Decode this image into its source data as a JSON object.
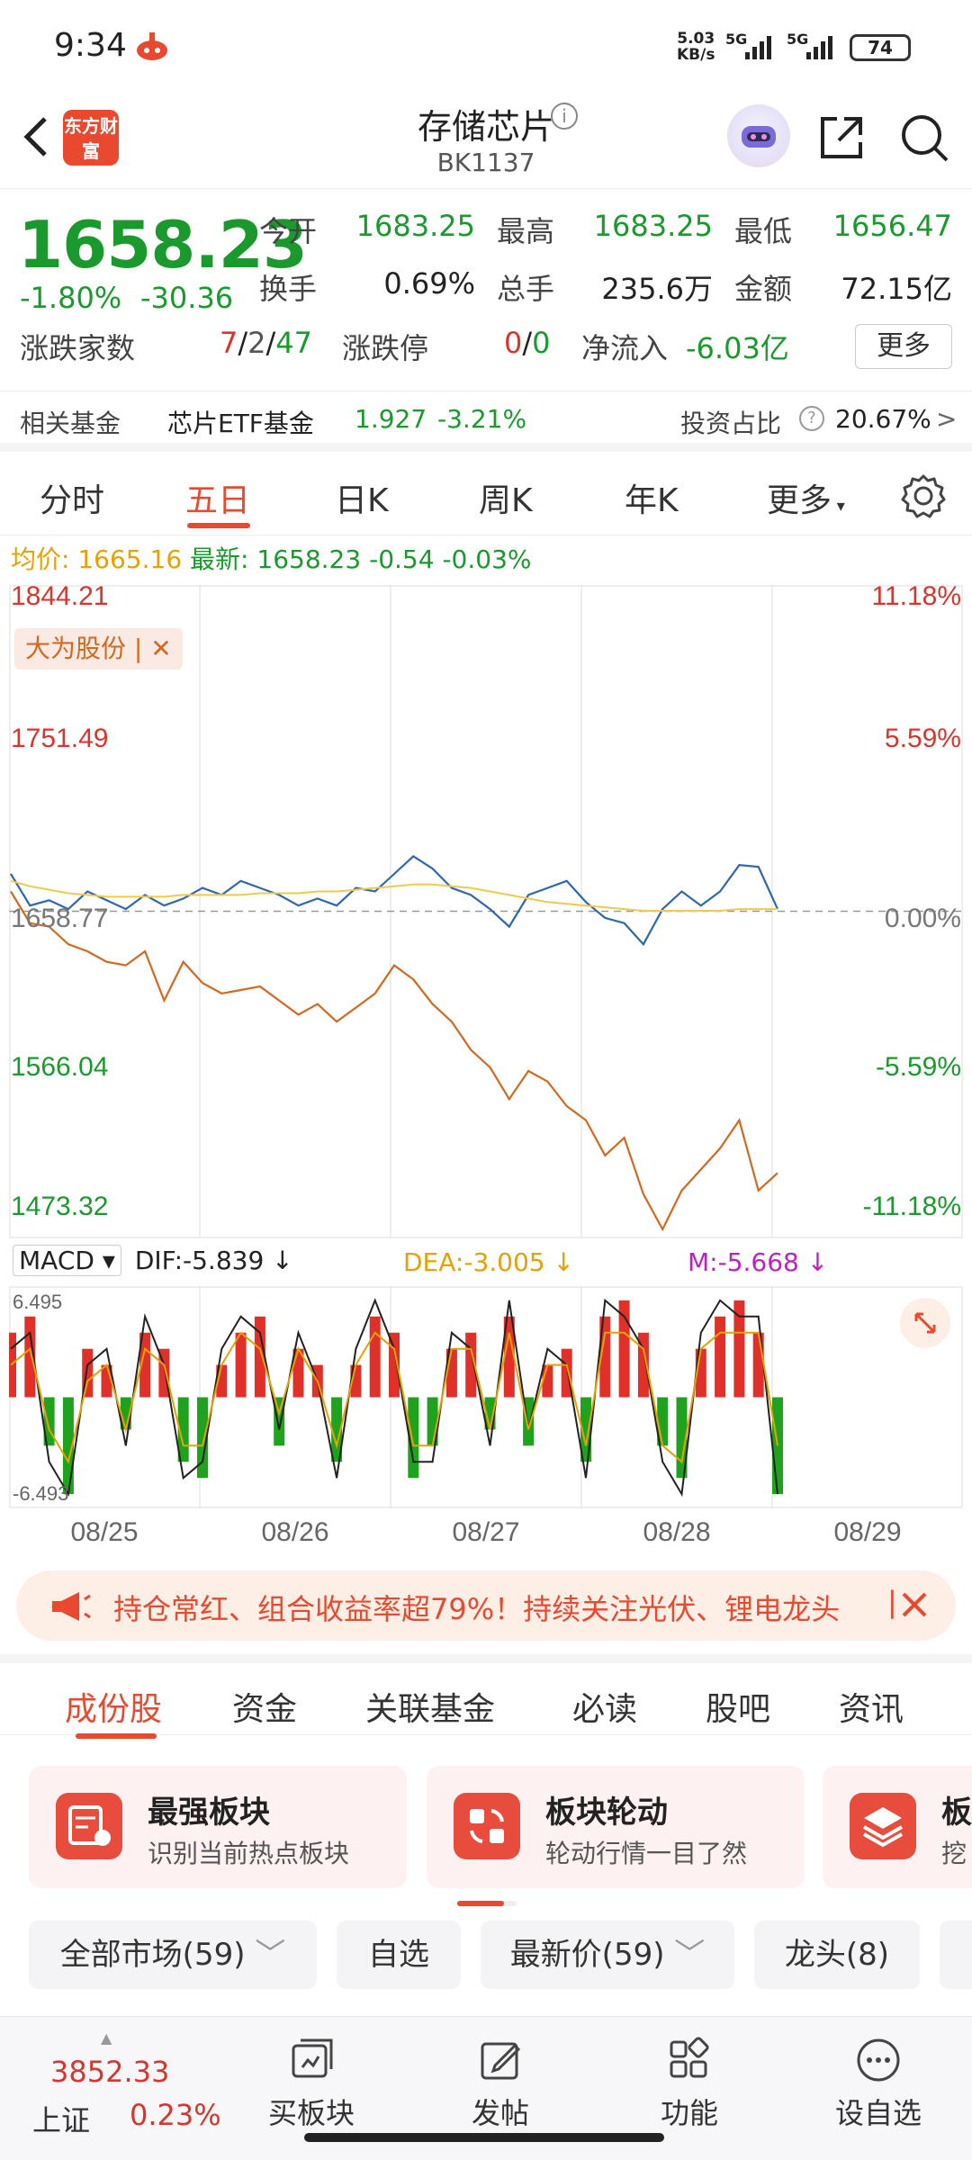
{
  "status_bar": {
    "time": "9:34",
    "speed_value": "5.03",
    "speed_unit": "KB/s",
    "signal1": "5G",
    "signal2": "5G",
    "battery": "74"
  },
  "header": {
    "logo_text": "东方财富",
    "title": "存储芯片",
    "code": "BK1137"
  },
  "quote": {
    "price": "1658.23",
    "change_pct": "-1.80%",
    "change_abs": "-30.36",
    "open_label": "今开",
    "open": "1683.25",
    "high_label": "最高",
    "high": "1683.25",
    "low_label": "最低",
    "low": "1656.47",
    "turnover_label": "换手",
    "turnover": "0.69%",
    "volume_label": "总手",
    "volume": "235.6万",
    "amount_label": "金额",
    "amount": "72.15亿",
    "breadth_label": "涨跌家数",
    "breadth_up": "7",
    "breadth_flat": "2",
    "breadth_down": "47",
    "limit_label": "涨跌停",
    "limit_up": "0",
    "limit_down": "0",
    "inflow_label": "净流入",
    "inflow": "-6.03亿",
    "more": "更多"
  },
  "fund": {
    "label": "相关基金",
    "name": "芯片ETF基金",
    "price": "1.927",
    "change": "-3.21%",
    "ratio_label": "投资占比",
    "ratio": "20.67%"
  },
  "chart_tabs": [
    "分时",
    "五日",
    "日K",
    "周K",
    "年K",
    "更多"
  ],
  "avg": {
    "label": "均价:",
    "value": "1665.16",
    "latest_label": "最新:",
    "latest": "1658.23",
    "chg": "-0.54",
    "pct": "-0.03%"
  },
  "chart_data": {
    "type": "line",
    "y_ticks_left": [
      "1844.21",
      "1751.49",
      "1658.77",
      "1566.04",
      "1473.32"
    ],
    "y_ticks_right": [
      "11.18%",
      "5.59%",
      "0.00%",
      "-5.59%",
      "-11.18%"
    ],
    "ylim": [
      1473.32,
      1844.21
    ],
    "x_labels": [
      "08/25",
      "08/26",
      "08/27",
      "08/28",
      "08/29"
    ],
    "compare_tag": "大为股份",
    "series": [
      {
        "name": "",
        "color": "#2f66b0",
        "values": [
          1680,
          1662,
          1665,
          1660,
          1670,
          1665,
          1660,
          1668,
          1662,
          1666,
          1672,
          1668,
          1676,
          1672,
          1668,
          1662,
          1666,
          1662,
          1672,
          1670,
          1680,
          1690,
          1683,
          1672,
          1668,
          1660,
          1650,
          1668,
          1672,
          1676,
          1664,
          1655,
          1652,
          1640,
          1660,
          1670,
          1662,
          1670,
          1685,
          1684,
          1660
        ]
      },
      {
        "name": "",
        "color": "#f2c94c",
        "values": [
          1676,
          1673,
          1671,
          1669,
          1668,
          1667,
          1667,
          1667,
          1667,
          1668,
          1668,
          1668,
          1668,
          1669,
          1669,
          1669,
          1670,
          1670,
          1671,
          1672,
          1673,
          1674,
          1674,
          1673,
          1672,
          1670,
          1668,
          1666,
          1664,
          1663,
          1662,
          1661,
          1660,
          1659,
          1659,
          1659,
          1659,
          1659,
          1660,
          1660,
          1660
        ]
      },
      {
        "name": "",
        "color": "#d2691e",
        "values": [
          1670,
          1652,
          1650,
          1640,
          1636,
          1630,
          1628,
          1636,
          1608,
          1630,
          1618,
          1612,
          1614,
          1616,
          1608,
          1600,
          1606,
          1596,
          1604,
          1612,
          1628,
          1620,
          1606,
          1596,
          1580,
          1570,
          1552,
          1568,
          1562,
          1548,
          1540,
          1520,
          1530,
          1498,
          1478,
          1500,
          1512,
          1524,
          1540,
          1500,
          1510
        ]
      }
    ],
    "macd": {
      "label": "MACD",
      "dif": "DIF:-5.839",
      "dea": "DEA:-3.005",
      "m": "M:-5.668",
      "top": "6.495",
      "bottom": "-6.493",
      "ylim": [
        -6.493,
        6.495
      ],
      "bars": [
        4,
        5,
        -3,
        -6,
        3,
        2,
        -2,
        4,
        3,
        -4,
        -5,
        2,
        4,
        5,
        -3,
        3,
        2,
        -4,
        2,
        5,
        4,
        -5,
        -3,
        3,
        4,
        -2,
        5,
        -3,
        2,
        3,
        -4,
        5,
        6,
        4,
        -3,
        -5,
        3,
        5,
        6,
        4,
        -6
      ],
      "dif_values": [
        3,
        4,
        -4,
        -6,
        2,
        3,
        -3,
        5,
        2,
        -5,
        -4,
        3,
        5,
        4,
        -2,
        4,
        1,
        -5,
        3,
        6,
        3,
        -4,
        -4,
        4,
        3,
        -3,
        6,
        -2,
        3,
        2,
        -5,
        6,
        5,
        3,
        -4,
        -6,
        4,
        6,
        5,
        5,
        -6
      ],
      "dea_values": [
        2,
        3,
        -2,
        -4,
        1,
        2,
        -2,
        3,
        2,
        -3,
        -3,
        2,
        4,
        3,
        -1,
        3,
        1,
        -3,
        2,
        4,
        3,
        -3,
        -3,
        3,
        3,
        -2,
        4,
        -2,
        2,
        2,
        -3,
        4,
        4,
        3,
        -3,
        -4,
        3,
        4,
        4,
        4,
        -3
      ]
    }
  },
  "banner": {
    "text": "持仓常红、组合收益率超79%！持续关注光伏、锂电龙头"
  },
  "sub_tabs": [
    "成份股",
    "资金",
    "关联基金",
    "必读",
    "股吧",
    "资讯"
  ],
  "cards": [
    {
      "title": "最强板块",
      "subtitle": "识别当前热点板块"
    },
    {
      "title": "板块轮动",
      "subtitle": "轮动行情一目了然"
    },
    {
      "title": "板",
      "subtitle": "挖"
    }
  ],
  "chips": [
    "全部市场(59)",
    "自选",
    "最新价(59)",
    "龙头(8)"
  ],
  "bottom_nav": {
    "index_value": "3852.33",
    "index_name": "上证",
    "index_change": "0.23%",
    "items": [
      "买板块",
      "发帖",
      "功能",
      "设自选"
    ]
  }
}
